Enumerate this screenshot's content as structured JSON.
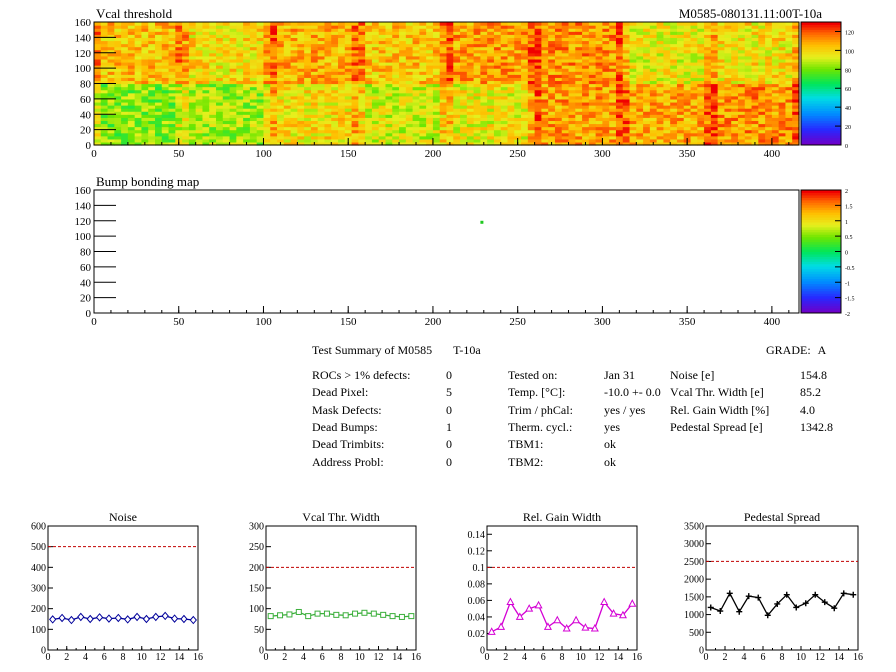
{
  "vcal_map": {
    "title": "Vcal threshold",
    "module_id": "M0585-080131.11:00T-10a",
    "x_ticks": [
      "0",
      "50",
      "100",
      "150",
      "200",
      "250",
      "300",
      "350",
      "400"
    ],
    "y_ticks": [
      "0",
      "20",
      "40",
      "60",
      "80",
      "100",
      "120",
      "140",
      "160"
    ],
    "palette_ticks": [
      "0",
      "20",
      "40",
      "60",
      "80",
      "100",
      "120"
    ],
    "xlim": [
      0,
      416
    ],
    "ylim": [
      0,
      160
    ],
    "zlim": [
      0,
      130
    ],
    "roc_means_top": [
      105,
      100,
      108,
      104,
      110,
      112,
      96,
      99,
      103,
      92,
      100,
      98,
      106,
      104,
      102,
      108
    ],
    "roc_means_bottom": [
      82,
      86,
      99,
      92,
      96,
      110,
      108,
      112,
      116,
      108,
      110,
      104,
      114,
      118,
      116,
      112
    ]
  },
  "bump_map": {
    "title": "Bump bonding map",
    "x_ticks": [
      "0",
      "50",
      "100",
      "150",
      "200",
      "250",
      "300",
      "350",
      "400"
    ],
    "y_ticks": [
      "0",
      "20",
      "40",
      "60",
      "80",
      "100",
      "120",
      "140",
      "160"
    ],
    "palette_ticks": [
      "-2",
      "-1.5",
      "-1",
      "-0.5",
      "0",
      "0.5",
      "1",
      "1.5",
      "2"
    ],
    "xlim": [
      0,
      416
    ],
    "ylim": [
      0,
      160
    ],
    "zlim": [
      -2,
      2
    ],
    "dead_bump": {
      "x": 228,
      "y": 118
    }
  },
  "summary": {
    "title": "Test Summary of M0585",
    "temp_tag": "T-10a",
    "grade_label": "GRADE:",
    "grade": "A",
    "left_rows": [
      {
        "label": "ROCs > 1% defects:",
        "value": "0"
      },
      {
        "label": "Dead Pixel:",
        "value": "5"
      },
      {
        "label": "Mask Defects:",
        "value": "0"
      },
      {
        "label": "Dead Bumps:",
        "value": "1"
      },
      {
        "label": "Dead Trimbits:",
        "value": "0"
      },
      {
        "label": "Address Probl:",
        "value": "0"
      }
    ],
    "mid_rows": [
      {
        "label": "Tested on:",
        "value": "Jan 31"
      },
      {
        "label": "Temp. [°C]:",
        "value": "-10.0 +- 0.0"
      },
      {
        "label": "Trim / phCal:",
        "value": "yes / yes"
      },
      {
        "label": "Therm. cycl.:",
        "value": "yes"
      },
      {
        "label": "TBM1:",
        "value": "ok"
      },
      {
        "label": "TBM2:",
        "value": "ok"
      }
    ],
    "right_rows": [
      {
        "label": "Noise [e]",
        "value": "154.8"
      },
      {
        "label": "Vcal Thr. Width [e]",
        "value": "85.2"
      },
      {
        "label": "Rel. Gain Width [%]",
        "value": "4.0"
      },
      {
        "label": "Pedestal Spread [e]",
        "value": "1342.8"
      }
    ]
  },
  "chart_data": [
    {
      "type": "heatmap",
      "title": "Vcal threshold",
      "xlim": [
        0,
        416
      ],
      "ylim": [
        0,
        160
      ],
      "zlim": [
        0,
        130
      ],
      "x_ticks": [
        0,
        50,
        100,
        150,
        200,
        250,
        300,
        350,
        400
      ],
      "y_ticks": [
        0,
        20,
        40,
        60,
        80,
        100,
        120,
        140,
        160
      ]
    },
    {
      "type": "heatmap",
      "title": "Bump bonding map",
      "xlim": [
        0,
        416
      ],
      "ylim": [
        0,
        160
      ],
      "zlim": [
        -2,
        2
      ],
      "points": [
        {
          "x": 228,
          "y": 118,
          "z": 0.5
        }
      ]
    },
    {
      "type": "line",
      "title": "Noise",
      "x": [
        0,
        1,
        2,
        3,
        4,
        5,
        6,
        7,
        8,
        9,
        10,
        11,
        12,
        13,
        14,
        15
      ],
      "values": [
        148,
        155,
        145,
        160,
        150,
        158,
        152,
        155,
        148,
        160,
        150,
        160,
        165,
        152,
        150,
        145
      ],
      "limit": 500,
      "xlim": [
        0,
        16
      ],
      "ylim": [
        0,
        600
      ],
      "y_ticks": [
        0,
        100,
        200,
        300,
        400,
        500,
        600
      ],
      "x_ticks": [
        0,
        2,
        4,
        6,
        8,
        10,
        12,
        14,
        16
      ],
      "color": "#00009a",
      "marker": "diamond"
    },
    {
      "type": "line",
      "title": "Vcal Thr. Width",
      "x": [
        0,
        1,
        2,
        3,
        4,
        5,
        6,
        7,
        8,
        9,
        10,
        11,
        12,
        13,
        14,
        15
      ],
      "values": [
        82,
        84,
        86,
        92,
        82,
        88,
        88,
        85,
        84,
        88,
        90,
        88,
        85,
        82,
        80,
        82
      ],
      "limit": 200,
      "xlim": [
        0,
        16
      ],
      "ylim": [
        0,
        300
      ],
      "y_ticks": [
        0,
        50,
        100,
        150,
        200,
        250,
        300
      ],
      "x_ticks": [
        0,
        2,
        4,
        6,
        8,
        10,
        12,
        14,
        16
      ],
      "color": "#3caf3c",
      "marker": "square"
    },
    {
      "type": "line",
      "title": "Rel. Gain Width",
      "x": [
        0,
        1,
        2,
        3,
        4,
        5,
        6,
        7,
        8,
        9,
        10,
        11,
        12,
        13,
        14,
        15
      ],
      "values": [
        0.022,
        0.028,
        0.058,
        0.04,
        0.05,
        0.054,
        0.028,
        0.036,
        0.026,
        0.036,
        0.027,
        0.026,
        0.058,
        0.044,
        0.042,
        0.056
      ],
      "limit": 0.1,
      "xlim": [
        0,
        16
      ],
      "ylim": [
        0,
        0.15
      ],
      "y_ticks": [
        0,
        0.02,
        0.04,
        0.06,
        0.08,
        0.1,
        0.12,
        0.14
      ],
      "x_ticks": [
        0,
        2,
        4,
        6,
        8,
        10,
        12,
        14,
        16
      ],
      "color": "#d400d4",
      "marker": "triangle"
    },
    {
      "type": "line",
      "title": "Pedestal Spread",
      "x": [
        0,
        1,
        2,
        3,
        4,
        5,
        6,
        7,
        8,
        9,
        10,
        11,
        12,
        13,
        14,
        15
      ],
      "values": [
        1200,
        1100,
        1600,
        1080,
        1520,
        1480,
        980,
        1300,
        1560,
        1200,
        1320,
        1560,
        1350,
        1180,
        1600,
        1560
      ],
      "limit": 2500,
      "xlim": [
        0,
        16
      ],
      "ylim": [
        0,
        3500
      ],
      "y_ticks": [
        0,
        500,
        1000,
        1500,
        2000,
        2500,
        3000,
        3500
      ],
      "x_ticks": [
        0,
        2,
        4,
        6,
        8,
        10,
        12,
        14,
        16
      ],
      "color": "#000000",
      "marker": "cross"
    }
  ]
}
